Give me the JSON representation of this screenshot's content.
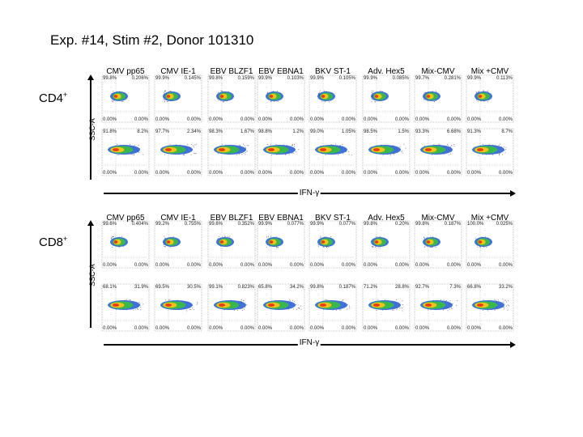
{
  "title": "Exp. #14, Stim #2, Donor 101310",
  "axis": {
    "x_label": "IFN-γ",
    "y_label": "SSC-A"
  },
  "groups": [
    {
      "label": "CD4",
      "superscript": "+",
      "columns": [
        "CMV pp65",
        "CMV IE-1",
        "EBV BLZF1",
        "EBV EBNA1",
        "BKV ST-1",
        "Adv. Hex5",
        "Mix-CMV",
        "Mix +CMV"
      ],
      "rows": [
        {
          "quads": [
            [
              "99.8%",
              "0.206%",
              "0.00%",
              "0.00%"
            ],
            [
              "99.9%",
              "0.145%",
              "0.00%",
              "0.00%"
            ],
            [
              "99.8%",
              "0.159%",
              "0.00%",
              "0.00%"
            ],
            [
              "99.9%",
              "0.103%",
              "0.00%",
              "0.00%"
            ],
            [
              "99.9%",
              "0.105%",
              "0.00%",
              "0.00%"
            ],
            [
              "99.9%",
              "0.085%",
              "0.00%",
              "0.00%"
            ],
            [
              "99.7%",
              "0.281%",
              "0.00%",
              "0.00%"
            ],
            [
              "99.9%",
              "0.113%",
              "0.00%",
              "0.00%"
            ]
          ]
        },
        {
          "quads": [
            [
              "91.8%",
              "8.2%",
              "0.00%",
              "0.00%"
            ],
            [
              "97.7%",
              "2.34%",
              "0.00%",
              "0.00%"
            ],
            [
              "98.3%",
              "1.67%",
              "0.00%",
              "0.00%"
            ],
            [
              "98.8%",
              "1.2%",
              "0.00%",
              "0.00%"
            ],
            [
              "99.0%",
              "1.05%",
              "0.00%",
              "0.00%"
            ],
            [
              "98.5%",
              "1.5%",
              "0.00%",
              "0.00%"
            ],
            [
              "93.3%",
              "6.68%",
              "0.00%",
              "0.00%"
            ],
            [
              "91.3%",
              "8.7%",
              "0.00%",
              "0.00%"
            ]
          ]
        }
      ]
    },
    {
      "label": "CD8",
      "superscript": "+",
      "columns": [
        "CMV pp65",
        "CMV IE-1",
        "EBV BLZF1",
        "EBV EBNA1",
        "BKV ST-1",
        "Adv. Hex5",
        "Mix-CMV",
        "Mix +CMV"
      ],
      "rows": [
        {
          "quads": [
            [
              "99.6%",
              "0.404%",
              "0.00%",
              "0.00%"
            ],
            [
              "99.2%",
              "0.755%",
              "0.00%",
              "0.00%"
            ],
            [
              "99.6%",
              "0.352%",
              "0.00%",
              "0.00%"
            ],
            [
              "99.9%",
              "0.077%",
              "0.00%",
              "0.00%"
            ],
            [
              "99.9%",
              "0.077%",
              "0.00%",
              "0.00%"
            ],
            [
              "99.8%",
              "0.20%",
              "0.00%",
              "0.00%"
            ],
            [
              "99.8%",
              "0.187%",
              "0.00%",
              "0.00%"
            ],
            [
              "100.0%",
              "0.025%",
              "0.00%",
              "0.00%"
            ]
          ]
        },
        {
          "quads": [
            [
              "68.1%",
              "31.9%",
              "0.00%",
              "0.00%"
            ],
            [
              "69.5%",
              "30.5%",
              "0.00%",
              "0.00%"
            ],
            [
              "99.1%",
              "0.823%",
              "0.00%",
              "0.00%"
            ],
            [
              "65.8%",
              "34.2%",
              "0.00%",
              "0.00%"
            ],
            [
              "99.8%",
              "0.187%",
              "0.00%",
              "0.00%"
            ],
            [
              "71.2%",
              "28.8%",
              "0.00%",
              "0.00%"
            ],
            [
              "92.7%",
              "7.3%",
              "0.00%",
              "0.00%"
            ],
            [
              "66.8%",
              "33.2%",
              "0.00%",
              "0.00%"
            ]
          ]
        }
      ]
    }
  ],
  "colors": {
    "population_core": "#e63a1a",
    "population_mid": "#f2c21a",
    "population_outer": "#3bb84a",
    "population_edge": "#1f5bd1",
    "scatter_points": "#6a6a8a"
  }
}
